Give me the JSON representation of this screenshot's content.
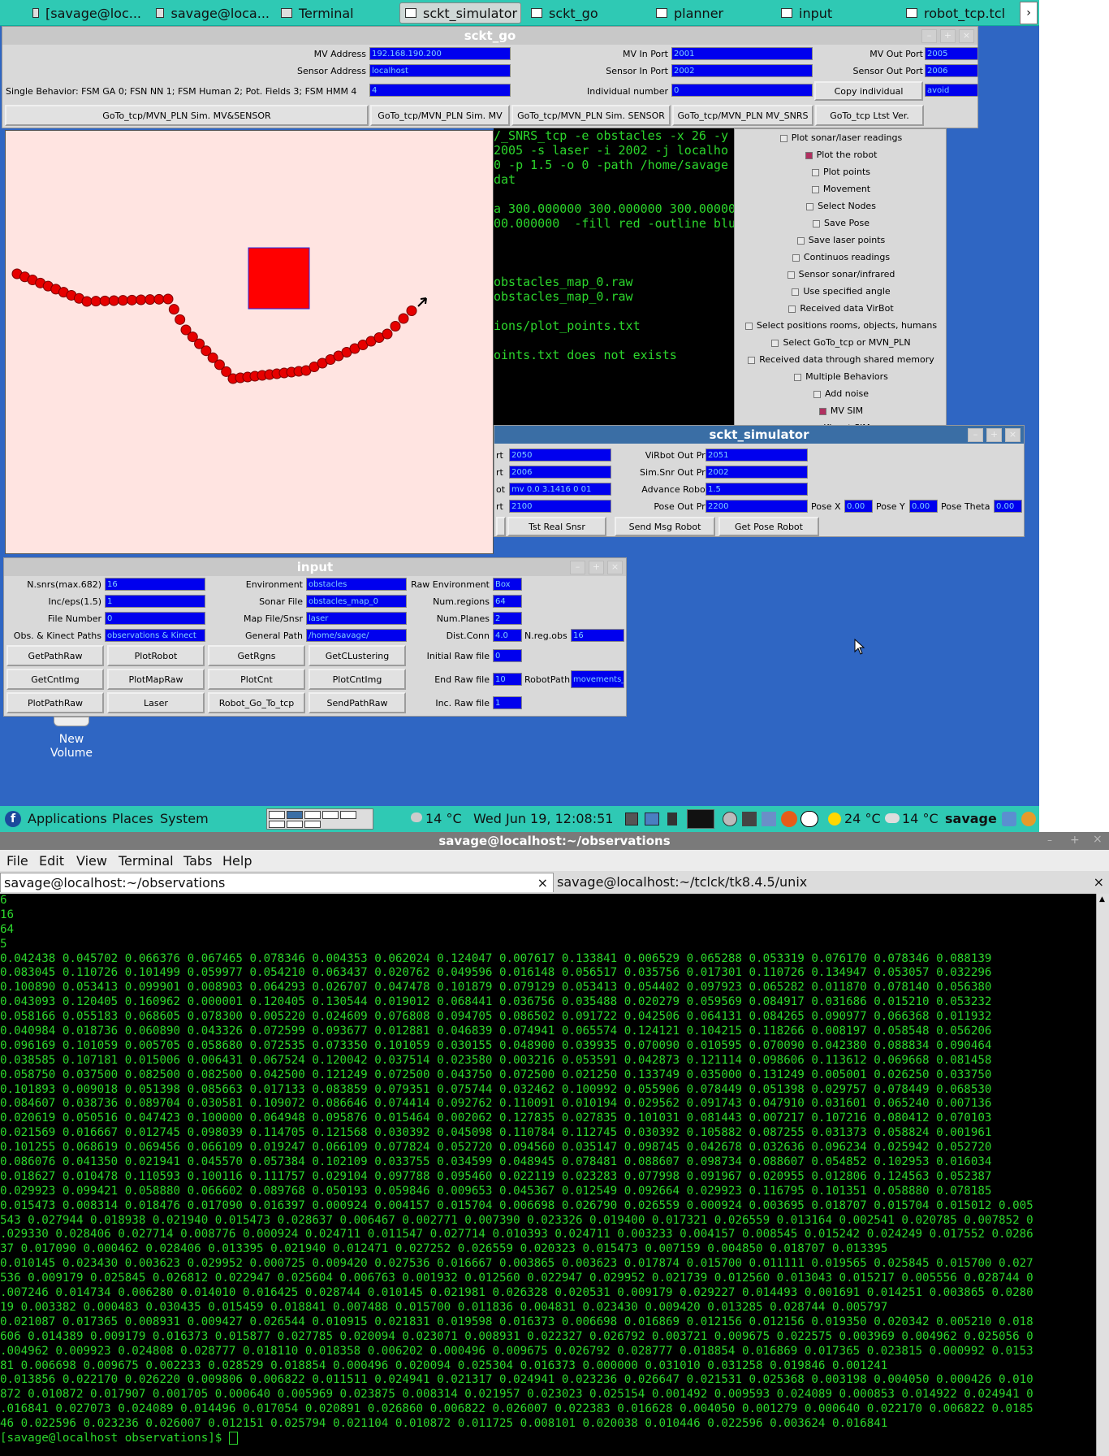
{
  "top_panel": {
    "tasks": [
      {
        "label": "[savage@loc...",
        "icon": "terminal-icon"
      },
      {
        "label": "savage@loca...",
        "icon": "terminal-icon"
      },
      {
        "label": "Terminal",
        "icon": "terminal-icon"
      },
      {
        "label": "sckt_simulator",
        "icon": "window-icon",
        "active": true
      },
      {
        "label": "sckt_go",
        "icon": "window-icon"
      },
      {
        "label": "planner",
        "icon": "window-icon"
      },
      {
        "label": "input",
        "icon": "window-icon"
      },
      {
        "label": "robot_tcp.tcl",
        "icon": "window-icon"
      }
    ],
    "scroll_arrow": "›"
  },
  "sckt_go": {
    "title": "sckt_go",
    "mv_address_label": "MV Address",
    "mv_address": "192.168.190.200",
    "sensor_address_label": "Sensor Address",
    "sensor_address": "localhost",
    "behavior_label": "Single Behavior: FSM GA 0; FSN NN 1; FSM Human 2; Pot. Fields 3; FSM HMM 4",
    "behavior": "4",
    "mv_in_port_label": "MV In Port",
    "mv_in_port": "2001",
    "sensor_in_port_label": "Sensor In Port",
    "sensor_in_port": "2002",
    "individual_label": "Individual number",
    "individual": "0",
    "mv_out_port_label": "MV Out Port",
    "mv_out_port": "2005",
    "sensor_out_port_label": "Sensor Out Port",
    "sensor_out_port": "2006",
    "copy_individual": "Copy individual",
    "avoid": "avoid",
    "buttons": [
      "GoTo_tcp/MVN_PLN Sim. MV&SENSOR",
      "GoTo_tcp/MVN_PLN Sim. MV",
      "GoTo_tcp/MVN_PLN Sim. SENSOR",
      "GoTo_tcp/MVN_PLN MV_SNRS",
      "GoTo_tcp Ltst Ver."
    ]
  },
  "mid_terminal": {
    "lines": [
      "/_SNRS_tcp -e obstacles -x 26 -y",
      "2005 -s laser -i 2002 -j localho",
      "0 -p 1.5 -o 0 -path /home/savage",
      "dat",
      "",
      "a 300.000000 300.000000 300.00000",
      "00.000000  -fill red -outline blu",
      "",
      "",
      "",
      "obstacles_map_0.raw",
      "obstacles_map_0.raw",
      "",
      "ions/plot_points.txt",
      "",
      "oints.txt does not exists"
    ]
  },
  "checkboxes": [
    {
      "label": "Plot sonar/laser readings",
      "on": false
    },
    {
      "label": "Plot the robot",
      "on": true
    },
    {
      "label": "Plot points",
      "on": false
    },
    {
      "label": "Movement",
      "on": false
    },
    {
      "label": "Select Nodes",
      "on": false
    },
    {
      "label": "Save Pose",
      "on": false
    },
    {
      "label": "Save laser points",
      "on": false
    },
    {
      "label": "Continuos readings",
      "on": false
    },
    {
      "label": "Sensor sonar/infrared",
      "on": false
    },
    {
      "label": "Use specified angle",
      "on": false
    },
    {
      "label": "Received data VirBot",
      "on": false
    },
    {
      "label": "Select positions rooms, objects, humans",
      "on": false
    },
    {
      "label": "Select GoTo_tcp or MVN_PLN",
      "on": false
    },
    {
      "label": "Received data through shared memory",
      "on": false
    },
    {
      "label": "Multiple Behaviors",
      "on": false
    },
    {
      "label": "Add noise",
      "on": false
    },
    {
      "label": "MV SIM",
      "on": true
    },
    {
      "label": "Kinect SIM",
      "on": true
    }
  ],
  "sckt_simulator": {
    "title": "sckt_simulator",
    "left_labels": [
      "rt",
      "rt",
      "ot",
      "rt"
    ],
    "left_values": [
      "2050",
      "2006",
      "mv 0.0 3.1416 0 01",
      "2100"
    ],
    "virbot_out_label": "ViRbot Out Prt",
    "virbot_out": "2051",
    "sim_snr_label": "Sim.Snr Out Prt",
    "sim_snr": "2002",
    "advance_label": "Advance Robot",
    "advance": "1.5",
    "pose_out_label": "Pose Out Prt",
    "pose_out": "2200",
    "pose_x_label": "Pose X",
    "pose_x": "0.00",
    "pose_y_label": "Pose Y",
    "pose_y": "0.00",
    "pose_theta_label": "Pose Theta",
    "pose_theta": "0.00",
    "btn_tst": "Tst Real Snsr",
    "btn_send": "Send Msg Robot",
    "btn_get": "Get Pose Robot"
  },
  "input": {
    "title": "input",
    "nsnrs_label": "N.snrs(max.682)",
    "nsnrs": "16",
    "inceps_label": "Inc/eps(1.5)",
    "inceps": "1",
    "filenum_label": "File Number",
    "filenum": "0",
    "obs_label": "Obs. & Kinect Paths",
    "obs": "observations & Kinect",
    "env_label": "Environment",
    "env": "obstacles",
    "sonar_label": "Sonar File",
    "sonar": "obstacles_map_0",
    "mapfile_label": "Map File/Snsr",
    "mapfile": "laser",
    "genpath_label": "General Path",
    "genpath": "/home/savage/",
    "rawenv_label": "Raw Environment",
    "rawenv": "Box",
    "numreg_label": "Num.regions",
    "numreg": "64",
    "numplanes_label": "Num.Planes",
    "numplanes": "2",
    "distconn_label": "Dist.Conn",
    "distconn": "4.0",
    "nregobs_label": "N.reg.obs",
    "nregobs": "16",
    "initraw_label": "Initial Raw file",
    "initraw": "0",
    "endraw_label": "End Raw file",
    "endraw": "10",
    "robotpath_label": "RobotPath",
    "robotpath": "movements_",
    "incraw_label": "Inc. Raw file",
    "incraw": "1",
    "buttons": [
      "GetPathRaw",
      "PlotRobot",
      "GetRgns",
      "GetCLustering",
      "GetCntImg",
      "PlotMapRaw",
      "PlotCnt",
      "PlotCntImg",
      "PlotPathRaw",
      "Laser",
      "Robot_Go_To_tcp",
      "SendPathRaw"
    ]
  },
  "desktop": {
    "volume_label_1": "New",
    "volume_label_2": "Volume"
  },
  "bottom_panel": {
    "applications": "Applications",
    "places": "Places",
    "system": "System",
    "weather": "14 °C",
    "datetime": "Wed Jun 19, 12:08:51",
    "temp2": "24 °C",
    "temp3": "14 °C",
    "user": "savage"
  },
  "terminal": {
    "title": "savage@localhost:~/observations",
    "menu": [
      "File",
      "Edit",
      "View",
      "Terminal",
      "Tabs",
      "Help"
    ],
    "tab1": "savage@localhost:~/observations",
    "tab2": "savage@localhost:~/tclck/tk8.4.5/unix",
    "lines": [
      "6",
      "16",
      "64",
      "5",
      "0.042438 0.045702 0.066376 0.067465 0.078346 0.004353 0.062024 0.124047 0.007617 0.133841 0.006529 0.065288 0.053319 0.076170 0.078346 0.088139",
      "0.083045 0.110726 0.101499 0.059977 0.054210 0.063437 0.020762 0.049596 0.016148 0.056517 0.035756 0.017301 0.110726 0.134947 0.053057 0.032296",
      "0.100890 0.053413 0.099901 0.008903 0.064293 0.026707 0.047478 0.101879 0.079129 0.053413 0.054402 0.097923 0.065282 0.011870 0.078140 0.056380",
      "0.043093 0.120405 0.160962 0.000001 0.120405 0.130544 0.019012 0.068441 0.036756 0.035488 0.020279 0.059569 0.084917 0.031686 0.015210 0.053232",
      "0.058166 0.055183 0.068605 0.078300 0.005220 0.024609 0.076808 0.094705 0.086502 0.091722 0.042506 0.064131 0.084265 0.090977 0.066368 0.011932",
      "0.040984 0.018736 0.060890 0.043326 0.072599 0.093677 0.012881 0.046839 0.074941 0.065574 0.124121 0.104215 0.118266 0.008197 0.058548 0.056206",
      "0.096169 0.101059 0.005705 0.058680 0.072535 0.073350 0.101059 0.030155 0.048900 0.039935 0.070090 0.010595 0.070090 0.042380 0.088834 0.090464",
      "0.038585 0.107181 0.015006 0.006431 0.067524 0.120042 0.037514 0.023580 0.003216 0.053591 0.042873 0.121114 0.098606 0.113612 0.069668 0.081458",
      "0.058750 0.037500 0.082500 0.082500 0.042500 0.121249 0.072500 0.043750 0.072500 0.021250 0.133749 0.035000 0.131249 0.005001 0.026250 0.033750",
      "0.101893 0.009018 0.051398 0.085663 0.017133 0.083859 0.079351 0.075744 0.032462 0.100992 0.055906 0.078449 0.051398 0.029757 0.078449 0.068530",
      "0.084607 0.038736 0.089704 0.030581 0.109072 0.086646 0.074414 0.092762 0.110091 0.010194 0.029562 0.091743 0.047910 0.031601 0.065240 0.007136",
      "0.020619 0.050516 0.047423 0.100000 0.064948 0.095876 0.015464 0.002062 0.127835 0.027835 0.101031 0.081443 0.007217 0.107216 0.080412 0.070103",
      "0.021569 0.016667 0.012745 0.098039 0.114705 0.121568 0.030392 0.045098 0.110784 0.112745 0.030392 0.105882 0.087255 0.031373 0.058824 0.001961",
      "0.101255 0.068619 0.069456 0.066109 0.019247 0.066109 0.077824 0.052720 0.094560 0.035147 0.098745 0.042678 0.032636 0.096234 0.025942 0.052720",
      "0.086076 0.041350 0.021941 0.045570 0.057384 0.102109 0.033755 0.034599 0.048945 0.078481 0.088607 0.098734 0.088607 0.054852 0.102953 0.016034",
      "0.018627 0.010478 0.110593 0.100116 0.111757 0.029104 0.097788 0.095460 0.022119 0.023283 0.077998 0.091967 0.020955 0.012806 0.124563 0.052387",
      "0.029923 0.099421 0.058880 0.066602 0.089768 0.050193 0.059846 0.009653 0.045367 0.012549 0.092664 0.029923 0.116795 0.101351 0.058880 0.078185",
      "0.015473 0.008314 0.018476 0.017090 0.016397 0.000924 0.004157 0.015704 0.006698 0.026790 0.026559 0.000924 0.003695 0.018707 0.015704 0.015012 0.005",
      "543 0.027944 0.018938 0.021940 0.015473 0.028637 0.006467 0.002771 0.007390 0.023326 0.019400 0.017321 0.026559 0.013164 0.002541 0.020785 0.007852 0",
      ".029330 0.028406 0.027714 0.008776 0.000924 0.024711 0.011547 0.027714 0.010393 0.024711 0.003233 0.004157 0.008545 0.015242 0.024249 0.017552 0.0286",
      "37 0.017090 0.000462 0.028406 0.013395 0.021940 0.012471 0.027252 0.026559 0.020323 0.015473 0.007159 0.004850 0.018707 0.013395",
      "0.010145 0.023430 0.003623 0.029952 0.000725 0.009420 0.027536 0.016667 0.003865 0.003623 0.017874 0.015700 0.011111 0.019565 0.025845 0.015700 0.027",
      "536 0.009179 0.025845 0.026812 0.022947 0.025604 0.006763 0.001932 0.012560 0.022947 0.029952 0.021739 0.012560 0.013043 0.015217 0.005556 0.028744 0",
      ".007246 0.014734 0.006280 0.014010 0.016425 0.028744 0.010145 0.021981 0.026328 0.020531 0.009179 0.029227 0.014493 0.001691 0.014251 0.003865 0.0280",
      "19 0.003382 0.000483 0.030435 0.015459 0.018841 0.007488 0.015700 0.011836 0.004831 0.023430 0.009420 0.013285 0.028744 0.005797",
      "0.021087 0.017365 0.008931 0.009427 0.026544 0.010915 0.021831 0.019598 0.016373 0.006698 0.016869 0.012156 0.012156 0.019350 0.020342 0.005210 0.018",
      "606 0.014389 0.009179 0.016373 0.015877 0.027785 0.020094 0.023071 0.008931 0.022327 0.026792 0.003721 0.009675 0.022575 0.003969 0.004962 0.025056 0",
      ".004962 0.009923 0.024808 0.028777 0.018110 0.018358 0.006202 0.000496 0.009675 0.026792 0.028777 0.018854 0.016869 0.017365 0.023815 0.000992 0.0153",
      "81 0.006698 0.009675 0.002233 0.028529 0.018854 0.000496 0.020094 0.025304 0.016373 0.000000 0.031010 0.031258 0.019846 0.001241",
      "0.013856 0.022170 0.026220 0.009806 0.006822 0.011511 0.024941 0.021317 0.024941 0.023236 0.026647 0.021531 0.025368 0.003198 0.004050 0.000426 0.010",
      "872 0.010872 0.017907 0.001705 0.000640 0.005969 0.023875 0.008314 0.021957 0.023023 0.025154 0.001492 0.009593 0.024089 0.000853 0.014922 0.024941 0",
      ".016841 0.027073 0.024089 0.014496 0.017054 0.020891 0.026860 0.006822 0.026007 0.022383 0.016628 0.004050 0.001279 0.000640 0.022170 0.006822 0.0185",
      "46 0.022596 0.023236 0.026007 0.012151 0.025794 0.021104 0.010872 0.011725 0.008101 0.020038 0.010446 0.022596 0.003624 0.016841",
      "[savage@localhost observations]$ "
    ]
  }
}
